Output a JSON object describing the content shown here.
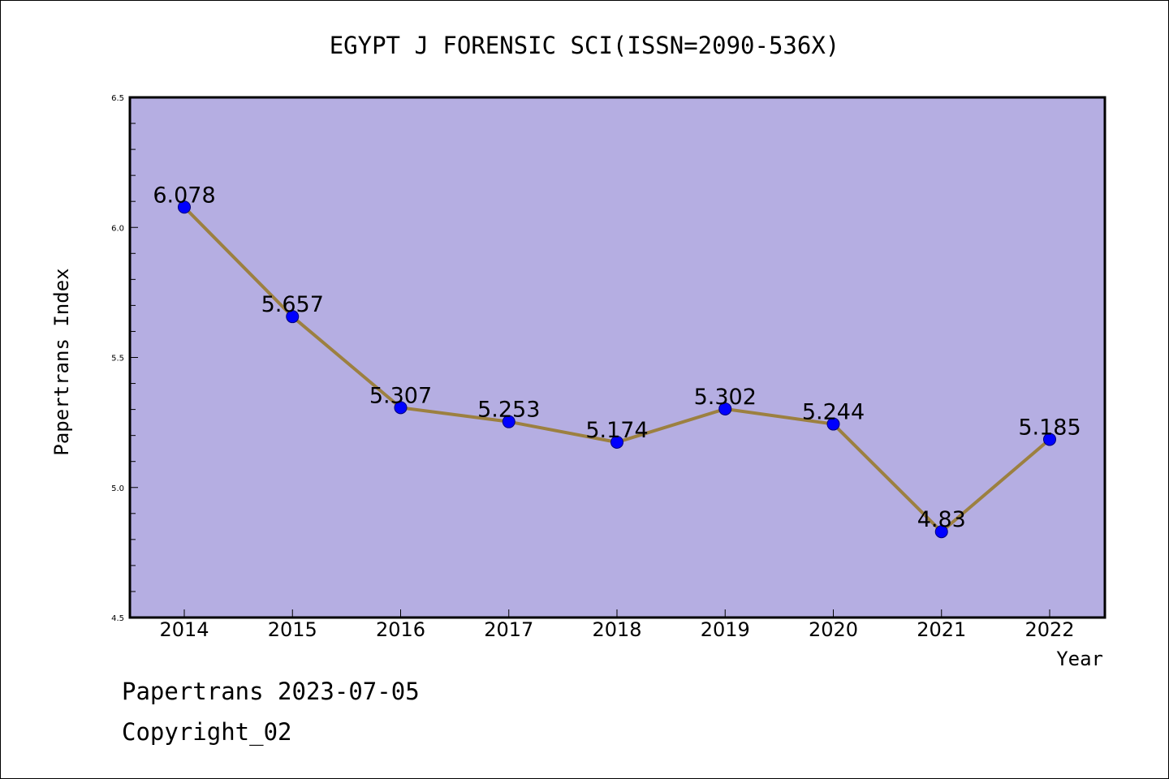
{
  "footer": {
    "line1": "Papertrans 2023-07-05",
    "line2": "Copyright_02"
  },
  "colors": {
    "plot_background": "#b5aee2",
    "line": "#9c8040",
    "marker": "#0000ff",
    "frame": "#000000"
  },
  "chart_data": {
    "type": "line",
    "title": "EGYPT J FORENSIC SCI(ISSN=2090-536X)",
    "xlabel": "Year",
    "ylabel": "Papertrans Index",
    "categories": [
      "2014",
      "2015",
      "2016",
      "2017",
      "2018",
      "2019",
      "2020",
      "2021",
      "2022"
    ],
    "series": [
      {
        "values": [
          6.078,
          5.657,
          5.307,
          5.253,
          5.174,
          5.302,
          5.244,
          4.83,
          5.185
        ],
        "labels": [
          "6.078",
          "5.657",
          "5.307",
          "5.253",
          "5.174",
          "5.302",
          "5.244",
          "4.83",
          "5.185"
        ]
      }
    ],
    "ylim": [
      4.5,
      6.5
    ],
    "yticks": [
      4.5,
      5.0,
      5.5,
      6.0,
      6.5
    ],
    "ytick_labels": [
      "4.5",
      "5.0",
      "5.5",
      "6.0",
      "6.5"
    ],
    "grid": false,
    "legend": "none"
  }
}
